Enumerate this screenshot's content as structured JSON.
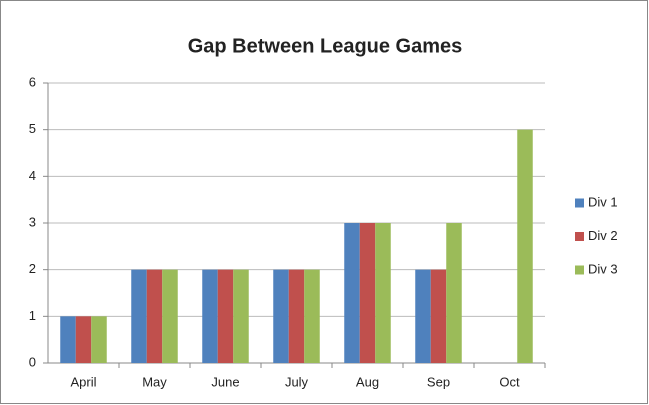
{
  "chart_data": {
    "type": "bar",
    "title": "Gap Between League Games",
    "categories": [
      "April",
      "May",
      "June",
      "July",
      "Aug",
      "Sep",
      "Oct"
    ],
    "series": [
      {
        "name": "Div 1",
        "color": "#4f81bd",
        "values": [
          1,
          2,
          2,
          2,
          3,
          2,
          null
        ]
      },
      {
        "name": "Div 2",
        "color": "#c0504d",
        "values": [
          1,
          2,
          2,
          2,
          3,
          2,
          null
        ]
      },
      {
        "name": "Div 3",
        "color": "#9bbb59",
        "values": [
          1,
          2,
          2,
          2,
          3,
          3,
          5
        ]
      }
    ],
    "ylim": [
      0,
      6
    ],
    "yticks": [
      0,
      1,
      2,
      3,
      4,
      5,
      6
    ],
    "grid": true,
    "legend": "right"
  }
}
